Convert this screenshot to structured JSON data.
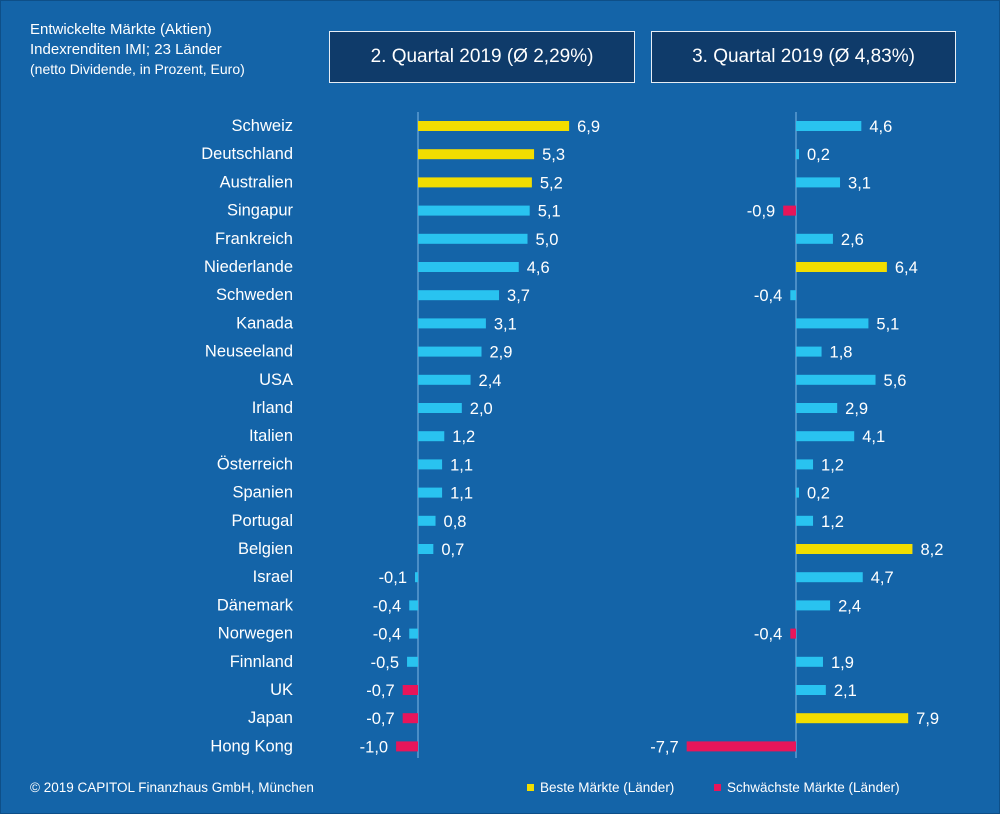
{
  "header": {
    "line1": "Entwickelte Märkte (Aktien)",
    "line2": "Indexrenditen IMI; 23 Länder",
    "line3": "(netto Dividende, in Prozent, Euro)"
  },
  "colors": {
    "background": "#1464A8",
    "bar_normal": "#29C3F0",
    "bar_best": "#F2DD00",
    "bar_worst": "#E8155A",
    "axis": "#7FB8E6"
  },
  "chart_data": {
    "type": "bar",
    "orientation": "horizontal",
    "categories": [
      "Schweiz",
      "Deutschland",
      "Australien",
      "Singapur",
      "Frankreich",
      "Niederlande",
      "Schweden",
      "Kanada",
      "Neuseeland",
      "USA",
      "Irland",
      "Italien",
      "Österreich",
      "Spanien",
      "Portugal",
      "Belgien",
      "Israel",
      "Dänemark",
      "Norwegen",
      "Finnland",
      "UK",
      "Japan",
      "Hong Kong"
    ],
    "panels": [
      {
        "title": "2. Quartal 2019 (Ø 2,29%)",
        "values": [
          6.9,
          5.3,
          5.2,
          5.1,
          5.0,
          4.6,
          3.7,
          3.1,
          2.9,
          2.4,
          2.0,
          1.2,
          1.1,
          1.1,
          0.8,
          0.7,
          -0.1,
          -0.4,
          -0.4,
          -0.5,
          -0.7,
          -0.7,
          -1.0
        ],
        "labels": [
          "6,9",
          "5,3",
          "5,2",
          "5,1",
          "5,0",
          "4,6",
          "3,7",
          "3,1",
          "2,9",
          "2,4",
          "2,0",
          "1,2",
          "1,1",
          "1,1",
          "0,8",
          "0,7",
          "-0,1",
          "-0,4",
          "-0,4",
          "-0,5",
          "-0,7",
          "-0,7",
          "-1,0"
        ],
        "best": [
          "Schweiz",
          "Deutschland",
          "Australien"
        ],
        "worst": [
          "UK",
          "Japan",
          "Hong Kong"
        ]
      },
      {
        "title": "3. Quartal 2019 (Ø 4,83%)",
        "values": [
          4.6,
          0.2,
          3.1,
          -0.9,
          2.6,
          6.4,
          -0.4,
          5.1,
          1.8,
          5.6,
          2.9,
          4.1,
          1.2,
          0.2,
          1.2,
          8.2,
          4.7,
          2.4,
          -0.4,
          1.9,
          2.1,
          7.9,
          -7.7
        ],
        "labels": [
          "4,6",
          "0,2",
          "3,1",
          "-0,9",
          "2,6",
          "6,4",
          "-0,4",
          "5,1",
          "1,8",
          "5,6",
          "2,9",
          "4,1",
          "1,2",
          "0,2",
          "1,2",
          "8,2",
          "4,7",
          "2,4",
          "-0,4",
          "1,9",
          "2,1",
          "7,9",
          "-7,7"
        ],
        "best": [
          "Niederlande",
          "Belgien",
          "Japan"
        ],
        "worst": [
          "Singapur",
          "Norwegen",
          "Hong Kong"
        ]
      }
    ],
    "legend": [
      {
        "label": "Beste Märkte (Länder)",
        "color": "#F2DD00"
      },
      {
        "label": "Schwächste Märkte (Länder)",
        "color": "#E8155A"
      }
    ]
  },
  "footer": {
    "copyright": "© 2019 CAPITOL Finanzhaus GmbH, München"
  }
}
